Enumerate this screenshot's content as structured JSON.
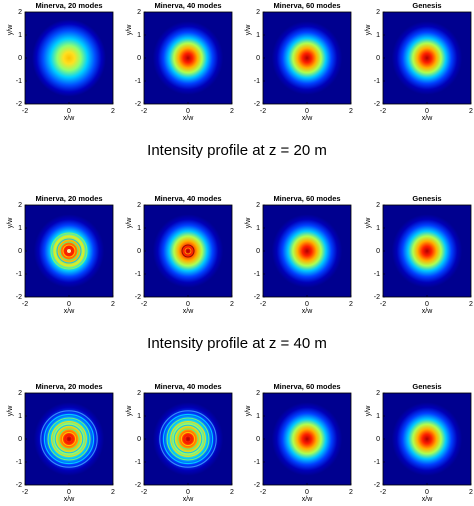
{
  "rows": [
    {
      "panels": [
        {
          "title": "Minerva, 20 modes"
        },
        {
          "title": "Minerva, 40 modes"
        },
        {
          "title": "Minerva, 60 modes"
        },
        {
          "title": "Genesis"
        }
      ],
      "caption": "Intensity profile at z = 20 m"
    },
    {
      "panels": [
        {
          "title": "Minerva, 20 modes"
        },
        {
          "title": "Minerva, 40 modes"
        },
        {
          "title": "Minerva, 60 modes"
        },
        {
          "title": "Genesis"
        }
      ],
      "caption": "Intensity profile at z = 40 m"
    },
    {
      "panels": [
        {
          "title": "Minerva, 20 modes"
        },
        {
          "title": "Minerva, 40 modes"
        },
        {
          "title": "Minerva, 60 modes"
        },
        {
          "title": "Genesis"
        }
      ]
    }
  ],
  "xlabel": "x/w",
  "ylabel": "y/w",
  "xticks": [
    -2,
    0,
    2
  ],
  "yticks": [
    2,
    1,
    0,
    -1,
    -2
  ]
}
